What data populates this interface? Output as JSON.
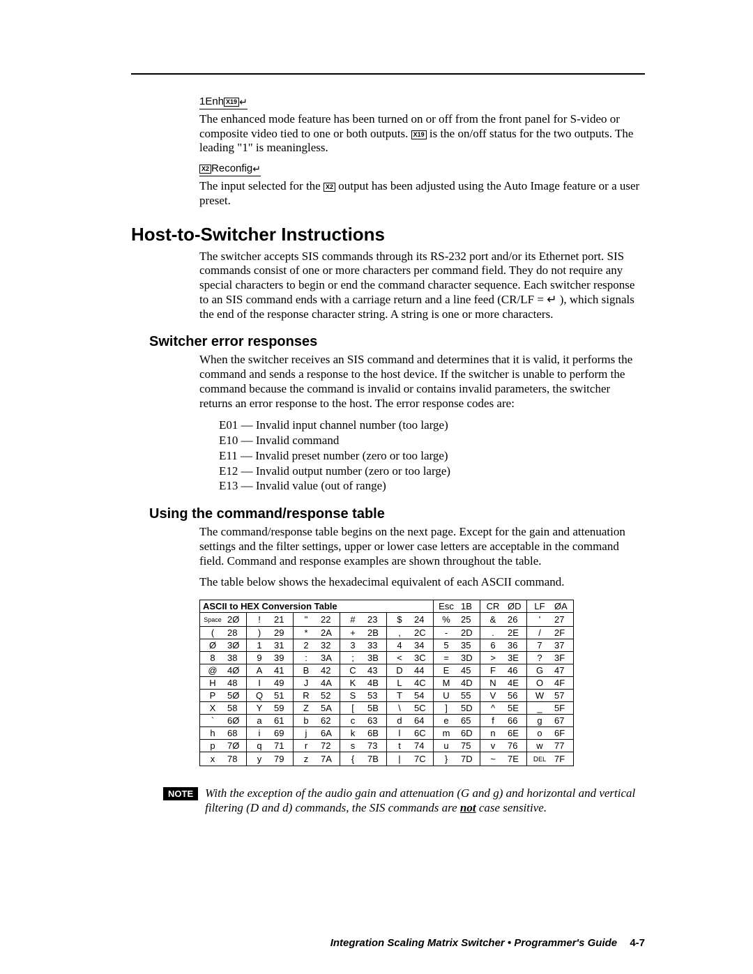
{
  "response1": {
    "prefix": "1Enh",
    "box": "X19",
    "para": "The enhanced mode feature has been turned on or off from the front panel for S-video or composite video tied to one or both outputs. ",
    "box_inline": "X19",
    "para_tail": " is the on/off status for the two outputs.  The leading \"1\" is meaningless."
  },
  "response2": {
    "box": "X2",
    "suffix": "Reconfig",
    "para_head": "The input selected for the ",
    "box_inline": "X2",
    "para_tail": " output has been adjusted using the Auto Image feature or a user preset."
  },
  "h1": "Host-to-Switcher Instructions",
  "host_para": "The switcher accepts SIS commands through its RS-232 port and/or its Ethernet port.  SIS commands consist of one or more characters per command field.  They do not require any special characters to begin or end the command character sequence.  Each switcher response to an SIS command ends with a carriage return and a line feed (CR/LF = ↵ ), which signals the end of the response character string.  A string is one or more characters.",
  "h2a": "Switcher error responses",
  "err_para": "When the switcher receives an SIS command and determines that it is valid, it performs the command and sends a response to the host device.  If the switcher is unable to perform the command because the command is invalid or contains invalid parameters, the switcher returns an error response to the host.  The error response codes are:",
  "errors": [
    "E01 — Invalid input channel number (too large)",
    "E10 — Invalid command",
    "E11 — Invalid preset number (zero or too large)",
    "E12 — Invalid output number (zero or too large)",
    "E13 — Invalid value (out of range)"
  ],
  "h2b": "Using the command/response table",
  "cmd_para1": "The command/response table begins on the next page.  Except for the gain and attenuation settings and the filter settings, upper or lower case letters are acceptable in the command field.  Command and response examples are shown throughout the table.",
  "cmd_para2": "The table below shows the hexadecimal equivalent of each ASCII command.",
  "table": {
    "title": "ASCII to HEX  Conversion Table",
    "header_right": [
      [
        "Esc",
        "1B"
      ],
      [
        "CR",
        "ØD"
      ],
      [
        "LF",
        "ØA"
      ]
    ],
    "rows": [
      [
        [
          "Space",
          "2Ø"
        ],
        [
          "!",
          "21"
        ],
        [
          "\"",
          "22"
        ],
        [
          "#",
          "23"
        ],
        [
          "$",
          "24"
        ],
        [
          "%",
          "25"
        ],
        [
          "&",
          "26"
        ],
        [
          "'",
          "27"
        ]
      ],
      [
        [
          "(",
          "28"
        ],
        [
          ")",
          "29"
        ],
        [
          "*",
          "2A"
        ],
        [
          "+",
          "2B"
        ],
        [
          ",",
          "2C"
        ],
        [
          "-",
          "2D"
        ],
        [
          ".",
          "2E"
        ],
        [
          "/",
          "2F"
        ]
      ],
      [
        [
          "Ø",
          "3Ø"
        ],
        [
          "1",
          "31"
        ],
        [
          "2",
          "32"
        ],
        [
          "3",
          "33"
        ],
        [
          "4",
          "34"
        ],
        [
          "5",
          "35"
        ],
        [
          "6",
          "36"
        ],
        [
          "7",
          "37"
        ]
      ],
      [
        [
          "8",
          "38"
        ],
        [
          "9",
          "39"
        ],
        [
          ":",
          "3A"
        ],
        [
          ";",
          "3B"
        ],
        [
          "<",
          "3C"
        ],
        [
          "=",
          "3D"
        ],
        [
          ">",
          "3E"
        ],
        [
          "?",
          "3F"
        ]
      ],
      [
        [
          "@",
          "4Ø"
        ],
        [
          "A",
          "41"
        ],
        [
          "B",
          "42"
        ],
        [
          "C",
          "43"
        ],
        [
          "D",
          "44"
        ],
        [
          "E",
          "45"
        ],
        [
          "F",
          "46"
        ],
        [
          "G",
          "47"
        ]
      ],
      [
        [
          "H",
          "48"
        ],
        [
          "I",
          "49"
        ],
        [
          "J",
          "4A"
        ],
        [
          "K",
          "4B"
        ],
        [
          "L",
          "4C"
        ],
        [
          "M",
          "4D"
        ],
        [
          "N",
          "4E"
        ],
        [
          "O",
          "4F"
        ]
      ],
      [
        [
          "P",
          "5Ø"
        ],
        [
          "Q",
          "51"
        ],
        [
          "R",
          "52"
        ],
        [
          "S",
          "53"
        ],
        [
          "T",
          "54"
        ],
        [
          "U",
          "55"
        ],
        [
          "V",
          "56"
        ],
        [
          "W",
          "57"
        ]
      ],
      [
        [
          "X",
          "58"
        ],
        [
          "Y",
          "59"
        ],
        [
          "Z",
          "5A"
        ],
        [
          "[",
          "5B"
        ],
        [
          "\\",
          "5C"
        ],
        [
          "]",
          "5D"
        ],
        [
          "^",
          "5E"
        ],
        [
          "_",
          "5F"
        ]
      ],
      [
        [
          "`",
          "6Ø"
        ],
        [
          "a",
          "61"
        ],
        [
          "b",
          "62"
        ],
        [
          "c",
          "63"
        ],
        [
          "d",
          "64"
        ],
        [
          "e",
          "65"
        ],
        [
          "f",
          "66"
        ],
        [
          "g",
          "67"
        ]
      ],
      [
        [
          "h",
          "68"
        ],
        [
          "i",
          "69"
        ],
        [
          "j",
          "6A"
        ],
        [
          "k",
          "6B"
        ],
        [
          "l",
          "6C"
        ],
        [
          "m",
          "6D"
        ],
        [
          "n",
          "6E"
        ],
        [
          "o",
          "6F"
        ]
      ],
      [
        [
          "p",
          "7Ø"
        ],
        [
          "q",
          "71"
        ],
        [
          "r",
          "72"
        ],
        [
          "s",
          "73"
        ],
        [
          "t",
          "74"
        ],
        [
          "u",
          "75"
        ],
        [
          "v",
          "76"
        ],
        [
          "w",
          "77"
        ]
      ],
      [
        [
          "x",
          "78"
        ],
        [
          "y",
          "79"
        ],
        [
          "z",
          "7A"
        ],
        [
          "{",
          "7B"
        ],
        [
          "|",
          "7C"
        ],
        [
          "}",
          "7D"
        ],
        [
          "~",
          "7E"
        ],
        [
          "DEL",
          "7F"
        ]
      ]
    ]
  },
  "note": {
    "label": "NOTE",
    "text_pre": "With the exception of the audio gain and attenuation (G and g) and horizontal and vertical filtering (D and d) commands, the SIS commands are ",
    "not": "not",
    "text_post": " case sensitive."
  },
  "footer": {
    "text": "Integration Scaling Matrix Switcher • Programmer's Guide",
    "page": "4-7"
  }
}
